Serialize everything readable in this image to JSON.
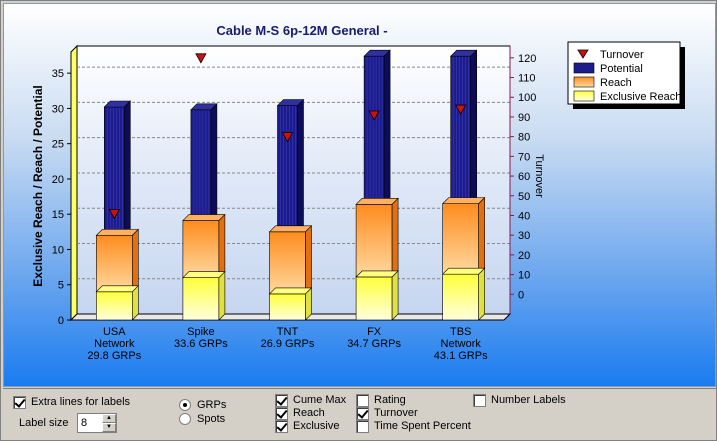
{
  "controls": {
    "extra_lines_label": "Extra lines for labels",
    "extra_lines_checked": true,
    "label_size_label": "Label size",
    "label_size_value": "8",
    "radio_grps": "GRPs",
    "radio_spots": "Spots",
    "selected_radio": "GRPs",
    "cume_max": "Cume Max",
    "reach": "Reach",
    "exclusive": "Exclusive",
    "rating": "Rating",
    "turnover": "Turnover",
    "time_spent_percent": "Time Spent Percent",
    "number_labels": "Number Labels",
    "checked": {
      "cume_max": true,
      "reach": true,
      "exclusive": true,
      "rating": false,
      "turnover": true,
      "time_spent_percent": false,
      "number_labels": false
    }
  },
  "colors": {
    "potential": "#1c1c8c",
    "reach_top": "#ffcf8a",
    "reach_bottom": "#ff8a1c",
    "exclusive_top": "#ffff40",
    "exclusive_bottom": "#ffffd8",
    "turnover_marker": "#cc1010",
    "right_axis": "#8b1a4a"
  },
  "chart_data": {
    "type": "bar",
    "title": "Cable M-S 6p-12M General  -",
    "ylabel": "Exclusive Reach / Reach / Potential",
    "y2label": "Turnover",
    "ylim": [
      0,
      38
    ],
    "yticks": [
      0,
      5,
      10,
      15,
      20,
      25,
      30,
      35
    ],
    "y2lim": [
      -10,
      126
    ],
    "y2ticks": [
      0,
      10,
      20,
      30,
      40,
      50,
      60,
      70,
      80,
      90,
      100,
      110,
      120
    ],
    "grid": true,
    "legend_position": "top-right",
    "categories": [
      {
        "name": "USA",
        "lines": [
          "USA",
          "Network",
          "29.8 GRPs"
        ]
      },
      {
        "name": "Spike",
        "lines": [
          "Spike",
          "33.6 GRPs"
        ]
      },
      {
        "name": "TNT",
        "lines": [
          "TNT",
          "26.9 GRPs"
        ]
      },
      {
        "name": "FX",
        "lines": [
          "FX",
          "34.7 GRPs"
        ]
      },
      {
        "name": "TBS",
        "lines": [
          "TBS",
          "Network",
          "43.1 GRPs"
        ]
      }
    ],
    "series": [
      {
        "name": "Turnover",
        "values": [
          41,
          120,
          80,
          91,
          94
        ]
      },
      {
        "name": "Potential",
        "values": [
          30.2,
          29.8,
          30.4,
          37.4,
          37.4
        ]
      },
      {
        "name": "Reach",
        "values": [
          12.0,
          14.1,
          12.5,
          16.4,
          16.5
        ]
      },
      {
        "name": "Exclusive Reach",
        "values": [
          4.0,
          6.0,
          3.7,
          6.1,
          6.5
        ]
      }
    ]
  }
}
